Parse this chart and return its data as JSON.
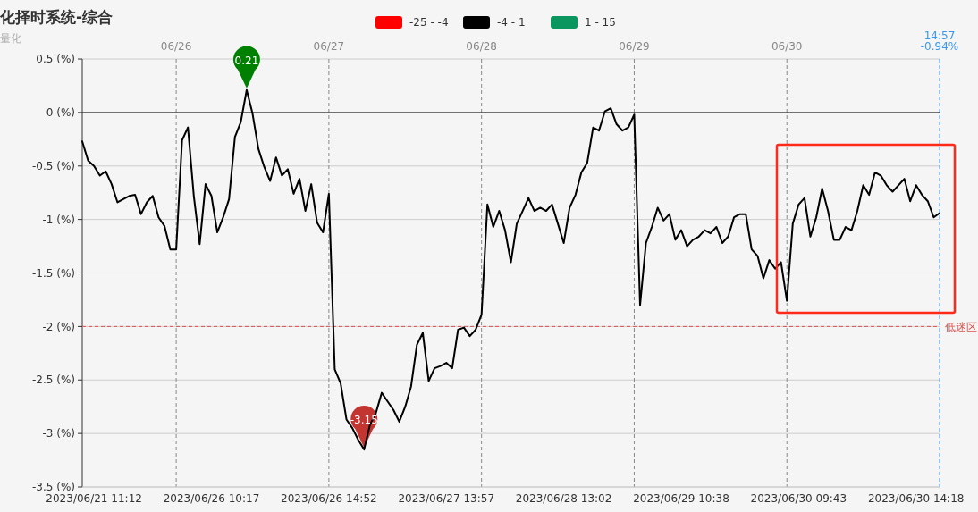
{
  "chart_data": {
    "type": "line",
    "title": "化择时系统-综合",
    "subtitle": "量化",
    "categories": [
      null,
      null,
      "2023/06/21 11:12",
      null,
      null,
      null,
      null,
      null,
      null,
      null,
      null,
      null,
      null,
      null,
      null,
      null,
      null,
      null,
      null,
      null,
      null,
      null,
      "2023/06/26 10:17",
      null,
      null,
      null,
      null,
      null,
      null,
      null,
      null,
      null,
      null,
      null,
      null,
      null,
      null,
      null,
      null,
      null,
      null,
      null,
      "2023/06/26 14:52",
      null,
      null,
      null,
      null,
      null,
      null,
      null,
      null,
      null,
      null,
      null,
      null,
      null,
      null,
      null,
      null,
      null,
      null,
      null,
      "2023/06/27 13:57",
      null,
      null,
      null,
      null,
      null,
      null,
      null,
      null,
      null,
      null,
      null,
      null,
      null,
      null,
      null,
      null,
      null,
      null,
      null,
      "2023/06/28 13:02",
      null,
      null,
      null,
      null,
      null,
      null,
      null,
      null,
      null,
      null,
      null,
      null,
      null,
      null,
      null,
      null,
      null,
      null,
      null,
      "2023/06/29 10:38",
      null,
      null,
      null,
      null,
      null,
      null,
      null,
      null,
      null,
      null,
      null,
      null,
      null,
      null,
      null,
      null,
      null,
      null,
      null,
      "2023/06/30 09:43",
      null,
      null,
      null,
      null,
      null,
      null,
      null,
      null,
      null,
      null,
      null,
      null,
      null,
      null,
      null,
      null,
      null,
      null,
      null,
      "2023/06/30 14:18",
      null,
      null,
      null,
      null
    ],
    "series": [
      {
        "name": "-25 - -4",
        "color": "#ff0000",
        "values": [
          null,
          null,
          null,
          null,
          null,
          null,
          null,
          null,
          null,
          null,
          null,
          null,
          null,
          null,
          null,
          null,
          null,
          null,
          null,
          null,
          null,
          null,
          null,
          null,
          null,
          null,
          null,
          null,
          null,
          null,
          null,
          null,
          null,
          null,
          null,
          null,
          null,
          null,
          null,
          null,
          null,
          null,
          null,
          null,
          null,
          null,
          null,
          null,
          null,
          null,
          null,
          null,
          null,
          null,
          null,
          null,
          null,
          null,
          null,
          null,
          null,
          null,
          null,
          null,
          null,
          null,
          null,
          null,
          null,
          null,
          null,
          null,
          null,
          null,
          null,
          null,
          null,
          null,
          null,
          null,
          null,
          null,
          null,
          null,
          null,
          null,
          null,
          null,
          null,
          null,
          null,
          null,
          null,
          null,
          null,
          null,
          null,
          null,
          null,
          null,
          null,
          null,
          null,
          null,
          null,
          null,
          null,
          null,
          null,
          null,
          null,
          null,
          null,
          null,
          null,
          null,
          null,
          null,
          null,
          null,
          null,
          null,
          null,
          null,
          null,
          null,
          null,
          null,
          null,
          null,
          null,
          null,
          null,
          null,
          null,
          null,
          null,
          null,
          null,
          null,
          null,
          null,
          null,
          null,
          null,
          null,
          null
        ]
      },
      {
        "name": "-4 - 1",
        "color": "#000000",
        "values": [
          -0.27,
          -0.45,
          -0.5,
          -0.59,
          -0.55,
          -0.67,
          -0.84,
          -0.81,
          -0.78,
          -0.77,
          -0.95,
          -0.84,
          -0.78,
          -0.98,
          -1.06,
          -1.28,
          -1.28,
          -0.26,
          -0.14,
          -0.78,
          -1.23,
          -0.67,
          -0.78,
          -1.12,
          -0.98,
          -0.81,
          -0.23,
          -0.09,
          0.21,
          -0.01,
          -0.34,
          -0.51,
          -0.64,
          -0.42,
          -0.59,
          -0.53,
          -0.76,
          -0.62,
          -0.92,
          -0.67,
          -1.03,
          -1.12,
          -0.76,
          -2.4,
          -2.53,
          -2.87,
          -2.95,
          -3.06,
          -3.15,
          -2.92,
          -2.81,
          -2.62,
          -2.7,
          -2.78,
          -2.89,
          -2.75,
          -2.56,
          -2.17,
          -2.06,
          -2.51,
          -2.39,
          -2.37,
          -2.34,
          -2.39,
          -2.03,
          -2.01,
          -2.09,
          -2.03,
          -1.89,
          -0.86,
          -1.07,
          -0.92,
          -1.1,
          -1.4,
          -1.04,
          -0.92,
          -0.8,
          -0.92,
          -0.89,
          -0.92,
          -0.86,
          -1.04,
          -1.22,
          -0.89,
          -0.77,
          -0.56,
          -0.47,
          -0.14,
          -0.17,
          0.01,
          0.04,
          -0.11,
          -0.17,
          -0.14,
          -0.02,
          -1.8,
          -1.22,
          -1.07,
          -0.89,
          -1.01,
          -0.95,
          -1.19,
          -1.1,
          -1.25,
          -1.19,
          -1.16,
          -1.1,
          -1.13,
          -1.07,
          -1.22,
          -1.16,
          -0.98,
          -0.95,
          -0.95,
          -1.28,
          -1.34,
          -1.55,
          -1.38,
          -1.46,
          -1.4,
          -1.76,
          -1.04,
          -0.86,
          -0.8,
          -1.16,
          -0.98,
          -0.71,
          -0.92,
          -1.19,
          -1.19,
          -1.07,
          -1.1,
          -0.92,
          -0.68,
          -0.77,
          -0.56,
          -0.59,
          -0.68,
          -0.74,
          -0.68,
          -0.62,
          -0.83,
          -0.68,
          -0.77,
          -0.83,
          -0.98,
          -0.94
        ]
      },
      {
        "name": "1 - 15",
        "color": "#0b9660",
        "values": [
          null,
          null,
          null,
          null,
          null,
          null,
          null,
          null,
          null,
          null,
          null,
          null,
          null,
          null,
          null,
          null,
          null,
          null,
          null,
          null,
          null,
          null,
          null,
          null,
          null,
          null,
          null,
          null,
          null,
          null,
          null,
          null,
          null,
          null,
          null,
          null,
          null,
          null,
          null,
          null,
          null,
          null,
          null,
          null,
          null,
          null,
          null,
          null,
          null,
          null,
          null,
          null,
          null,
          null,
          null,
          null,
          null,
          null,
          null,
          null,
          null,
          null,
          null,
          null,
          null,
          null,
          null,
          null,
          null,
          null,
          null,
          null,
          null,
          null,
          null,
          null,
          null,
          null,
          null,
          null,
          null,
          null,
          null,
          null,
          null,
          null,
          null,
          null,
          null,
          null,
          null,
          null,
          null,
          null,
          null,
          null,
          null,
          null,
          null,
          null,
          null,
          null,
          null,
          null,
          null,
          null,
          null,
          null,
          null,
          null,
          null,
          null,
          null,
          null,
          null,
          null,
          null,
          null,
          null,
          null,
          null,
          null,
          null,
          null,
          null,
          null,
          null,
          null,
          null,
          null,
          null,
          null,
          null,
          null,
          null,
          null,
          null,
          null,
          null,
          null,
          null,
          null,
          null,
          null,
          null,
          null,
          null
        ]
      }
    ],
    "ylim": [
      -3.5,
      0.5
    ],
    "yticks": [
      {
        "value": 0.5,
        "label": "0.5 (%)"
      },
      {
        "value": 0,
        "label": "0 (%)"
      },
      {
        "value": -0.5,
        "label": "-0.5 (%)"
      },
      {
        "value": -1,
        "label": "-1 (%)"
      },
      {
        "value": -1.5,
        "label": "-1.5 (%)"
      },
      {
        "value": -2,
        "label": "-2 (%)"
      },
      {
        "value": -2.5,
        "label": "-2.5 (%)"
      },
      {
        "value": -3,
        "label": "-3 (%)"
      },
      {
        "value": -3.5,
        "label": "-3.5 (%)"
      }
    ],
    "grid": "y",
    "legend": "top",
    "marker": "none",
    "line_style": "solid",
    "ref_lines": [
      {
        "axis": "y",
        "value": -2,
        "label": "低迷区",
        "color": "#d9534f",
        "line_style": "dashed"
      }
    ],
    "annotations": [
      {
        "text": "0.21",
        "y": 0.21
      },
      {
        "text": "-3.15",
        "y": -3.15
      },
      "06/26",
      "06/27",
      "06/28",
      "06/29",
      "06/30",
      "14:57\n-0.94%"
    ]
  }
}
